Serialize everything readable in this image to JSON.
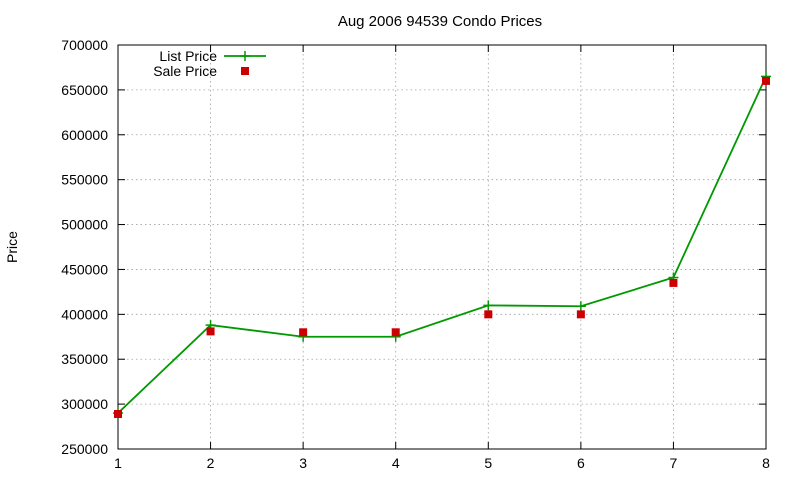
{
  "chart_data": {
    "type": "line",
    "title": "Aug 2006 94539 Condo Prices",
    "xlabel": "",
    "ylabel": "Price",
    "xlim": [
      1,
      8
    ],
    "ylim": [
      250000,
      700000
    ],
    "x_ticks": [
      "1",
      "2",
      "3",
      "4",
      "5",
      "6",
      "7",
      "8"
    ],
    "y_ticks": [
      "250000",
      "300000",
      "350000",
      "400000",
      "450000",
      "500000",
      "550000",
      "600000",
      "650000",
      "700000"
    ],
    "grid": true,
    "legend_position": "top-left",
    "x": [
      1,
      2,
      3,
      4,
      5,
      6,
      7,
      8
    ],
    "series": [
      {
        "name": "List Price",
        "style": "lines+points",
        "marker": "plus",
        "color": "#009900",
        "values": [
          290000,
          388000,
          375000,
          375000,
          410000,
          409000,
          441000,
          665000
        ]
      },
      {
        "name": "Sale Price",
        "style": "points",
        "marker": "square",
        "color": "#cc0000",
        "values": [
          289000,
          381000,
          380000,
          380000,
          400000,
          400000,
          435000,
          660000
        ]
      }
    ]
  }
}
